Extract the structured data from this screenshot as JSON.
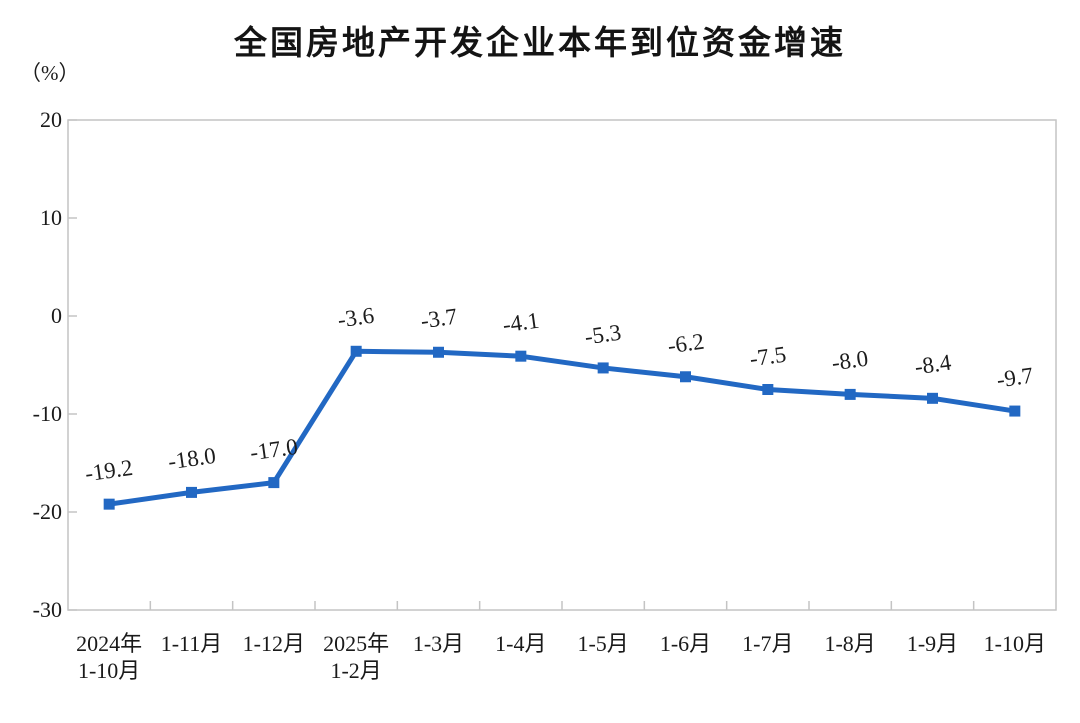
{
  "chart_data": {
    "type": "line",
    "title": "全国房地产开发企业本年到位资金增速",
    "unit_label": "（%）",
    "categories": [
      "2024年\n1-10月",
      "1-11月",
      "1-12月",
      "2025年\n1-2月",
      "1-3月",
      "1-4月",
      "1-5月",
      "1-6月",
      "1-7月",
      "1-8月",
      "1-9月",
      "1-10月"
    ],
    "values": [
      -19.2,
      -18.0,
      -17.0,
      -3.6,
      -3.7,
      -4.1,
      -5.3,
      -6.2,
      -7.5,
      -8.0,
      -8.4,
      -9.7
    ],
    "point_labels": [
      "-19.2",
      "-18.0",
      "-17.0",
      "-3.6",
      "-3.7",
      "-4.1",
      "-5.3",
      "-6.2",
      "-7.5",
      "-8.0",
      "-8.4",
      "-9.7"
    ],
    "ylim": [
      -30,
      20
    ],
    "y_ticks": [
      20,
      10,
      0,
      -10,
      -20,
      -30
    ],
    "xlabel": "",
    "ylabel": "（%）",
    "grid": false,
    "legend": "none",
    "line_color": "#2268c3",
    "marker": "square",
    "axis_color": "#c4c4c4",
    "text_color": "#1a1a1a"
  }
}
